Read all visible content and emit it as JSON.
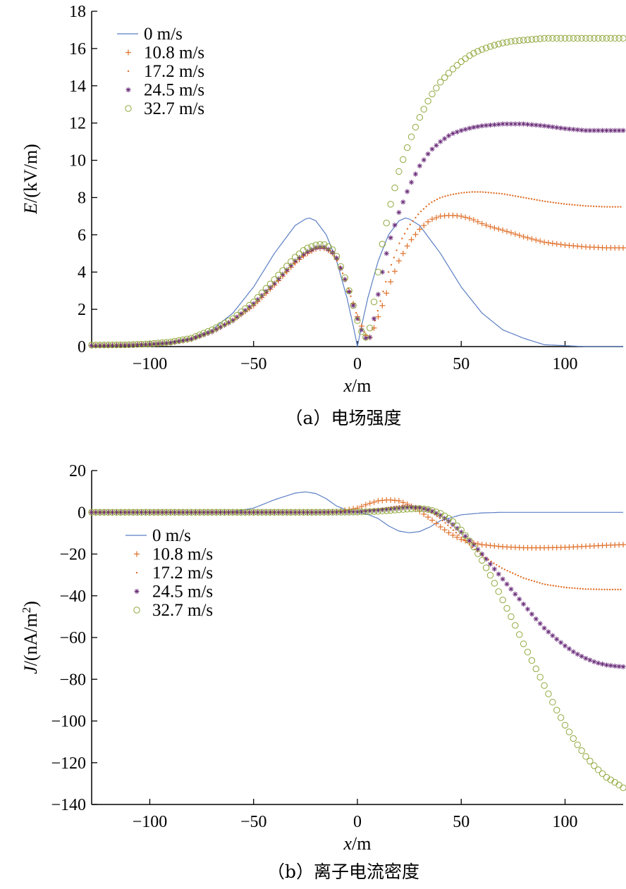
{
  "chart_data": [
    {
      "type": "scatter",
      "caption": "（a）电场强度",
      "ylabel_var": "E",
      "ylabel_unit": "/(kV/m)",
      "xlabel_var": "x",
      "xlabel_unit": "/m",
      "xlim": [
        -128,
        128
      ],
      "ylim": [
        0,
        18
      ],
      "xticks": [
        -100,
        -50,
        0,
        50,
        100
      ],
      "yticks": [
        0,
        2,
        4,
        6,
        8,
        10,
        12,
        14,
        16,
        18
      ],
      "xtick_labels": [
        "−100",
        "−50",
        "0",
        "50",
        "100"
      ],
      "ytick_labels": [
        "0",
        "2",
        "4",
        "6",
        "8",
        "10",
        "12",
        "14",
        "16",
        "18"
      ],
      "legend_position": "top-left",
      "series": [
        {
          "name": "0 m/s",
          "marker": "line",
          "color": "#5b7fc4",
          "x": [
            -128,
            -110,
            -100,
            -90,
            -80,
            -70,
            -60,
            -50,
            -40,
            -30,
            -25,
            -23,
            -20,
            -15,
            -10,
            -5,
            -2,
            0,
            2,
            5,
            10,
            15,
            20,
            23,
            25,
            30,
            40,
            50,
            60,
            70,
            80,
            90,
            100,
            110,
            128
          ],
          "y": [
            0.05,
            0.1,
            0.15,
            0.25,
            0.45,
            0.9,
            1.8,
            3.2,
            5.0,
            6.5,
            6.85,
            6.9,
            6.75,
            6.0,
            4.6,
            2.6,
            1.1,
            0.0,
            1.1,
            2.6,
            4.6,
            6.0,
            6.75,
            6.9,
            6.85,
            6.5,
            5.0,
            3.2,
            1.8,
            0.9,
            0.45,
            0.1,
            0.05,
            0.0,
            0.0
          ]
        },
        {
          "name": "10.8 m/s",
          "marker": "plus",
          "color": "#e0702a",
          "x": [
            -128,
            -110,
            -100,
            -90,
            -80,
            -70,
            -60,
            -50,
            -40,
            -30,
            -25,
            -20,
            -17,
            -15,
            -12,
            -10,
            -8,
            -5,
            -2,
            0,
            2,
            4,
            5,
            6,
            8,
            10,
            12,
            15,
            20,
            25,
            30,
            35,
            40,
            45,
            50,
            55,
            60,
            65,
            70,
            80,
            90,
            100,
            110,
            120,
            128
          ],
          "y": [
            0.05,
            0.08,
            0.12,
            0.2,
            0.4,
            0.8,
            1.4,
            2.2,
            3.3,
            4.5,
            4.95,
            5.25,
            5.3,
            5.25,
            5.0,
            4.7,
            4.2,
            3.3,
            2.3,
            1.6,
            1.1,
            0.6,
            0.4,
            0.5,
            1.0,
            1.6,
            2.2,
            3.2,
            4.6,
            5.6,
            6.3,
            6.8,
            7.0,
            7.05,
            7.0,
            6.85,
            6.6,
            6.4,
            6.25,
            5.9,
            5.6,
            5.45,
            5.35,
            5.3,
            5.3
          ]
        },
        {
          "name": "17.2 m/s",
          "marker": "dot",
          "color": "#e0702a",
          "x": [
            -128,
            -110,
            -100,
            -90,
            -80,
            -70,
            -60,
            -50,
            -40,
            -30,
            -25,
            -20,
            -17,
            -15,
            -12,
            -10,
            -8,
            -5,
            -2,
            0,
            2,
            4,
            5,
            6,
            8,
            10,
            12,
            15,
            20,
            25,
            30,
            35,
            40,
            45,
            50,
            55,
            60,
            65,
            70,
            80,
            90,
            100,
            110,
            120,
            128
          ],
          "y": [
            0.05,
            0.08,
            0.12,
            0.2,
            0.4,
            0.8,
            1.4,
            2.2,
            3.3,
            4.5,
            4.95,
            5.25,
            5.3,
            5.25,
            5.0,
            4.7,
            4.2,
            3.3,
            2.3,
            1.6,
            1.1,
            0.6,
            0.4,
            0.5,
            1.2,
            2.0,
            2.8,
            4.0,
            5.5,
            6.5,
            7.2,
            7.7,
            8.0,
            8.15,
            8.25,
            8.3,
            8.3,
            8.25,
            8.2,
            8.0,
            7.8,
            7.65,
            7.55,
            7.5,
            7.5
          ]
        },
        {
          "name": "24.5 m/s",
          "marker": "star",
          "color": "#6b2d7a",
          "x": [
            -128,
            -110,
            -100,
            -90,
            -80,
            -70,
            -60,
            -50,
            -40,
            -30,
            -25,
            -20,
            -17,
            -15,
            -12,
            -10,
            -8,
            -5,
            -2,
            0,
            2,
            4,
            5,
            6,
            8,
            10,
            12,
            15,
            20,
            25,
            30,
            35,
            40,
            45,
            50,
            55,
            60,
            65,
            70,
            75,
            80,
            90,
            100,
            110,
            120,
            128
          ],
          "y": [
            0.05,
            0.08,
            0.12,
            0.2,
            0.4,
            0.8,
            1.4,
            2.3,
            3.4,
            4.6,
            5.05,
            5.3,
            5.35,
            5.3,
            5.05,
            4.75,
            4.2,
            3.3,
            2.2,
            1.5,
            0.9,
            0.45,
            0.3,
            0.5,
            1.5,
            2.8,
            4.0,
            5.5,
            7.2,
            8.6,
            9.7,
            10.5,
            11.0,
            11.4,
            11.6,
            11.75,
            11.85,
            11.9,
            11.95,
            11.95,
            11.95,
            11.85,
            11.7,
            11.6,
            11.6,
            11.6
          ]
        },
        {
          "name": "32.7 m/s",
          "marker": "circle",
          "color": "#8fa83c",
          "x": [
            -128,
            -110,
            -100,
            -90,
            -80,
            -70,
            -60,
            -50,
            -40,
            -30,
            -25,
            -20,
            -17,
            -15,
            -12,
            -10,
            -8,
            -5,
            -2,
            0,
            2,
            4,
            5,
            6,
            8,
            10,
            12,
            15,
            20,
            25,
            30,
            35,
            40,
            45,
            50,
            55,
            60,
            65,
            70,
            75,
            80,
            90,
            100,
            110,
            120,
            128
          ],
          "y": [
            0.08,
            0.1,
            0.15,
            0.25,
            0.45,
            0.9,
            1.5,
            2.4,
            3.6,
            4.8,
            5.25,
            5.45,
            5.5,
            5.45,
            5.2,
            4.85,
            4.3,
            3.4,
            2.2,
            1.4,
            0.8,
            0.5,
            0.6,
            1.0,
            2.4,
            4.0,
            5.5,
            7.2,
            9.4,
            11.0,
            12.3,
            13.4,
            14.2,
            14.8,
            15.3,
            15.7,
            15.95,
            16.15,
            16.3,
            16.4,
            16.45,
            16.55,
            16.55,
            16.55,
            16.55,
            16.55
          ]
        }
      ]
    },
    {
      "type": "scatter",
      "caption": "（b）离子电流密度",
      "ylabel_var": "J",
      "ylabel_unit": "/(nA/m",
      "ylabel_sup": "2",
      "ylabel_close": ")",
      "xlabel_var": "x",
      "xlabel_unit": "/m",
      "xlim": [
        -128,
        128
      ],
      "ylim": [
        -140,
        20
      ],
      "xticks": [
        -100,
        -50,
        0,
        50,
        100
      ],
      "yticks": [
        -140,
        -120,
        -100,
        -80,
        -60,
        -40,
        -20,
        0,
        20
      ],
      "xtick_labels": [
        "−100",
        "−50",
        "0",
        "50",
        "100"
      ],
      "ytick_labels": [
        "−140",
        "−120",
        "−100",
        "−80",
        "−60",
        "−40",
        "−20",
        "0",
        "20"
      ],
      "legend_position": "center-left",
      "series": [
        {
          "name": "0 m/s",
          "marker": "line",
          "color": "#5b7fc4",
          "x": [
            -128,
            -80,
            -60,
            -50,
            -40,
            -30,
            -25,
            -20,
            -15,
            -10,
            -5,
            0,
            5,
            10,
            15,
            20,
            25,
            30,
            35,
            40,
            50,
            60,
            70,
            80,
            100,
            128
          ],
          "y": [
            0,
            0,
            0.3,
            2,
            6,
            9.2,
            9.8,
            9,
            6.5,
            3,
            1,
            0,
            -1,
            -3,
            -6.5,
            -9,
            -9.8,
            -9.2,
            -7,
            -4,
            -1.2,
            -0.3,
            0,
            0,
            0,
            0
          ]
        },
        {
          "name": "10.8 m/s",
          "marker": "plus",
          "color": "#e0702a",
          "x": [
            -128,
            -80,
            -40,
            -30,
            -20,
            -10,
            0,
            5,
            10,
            15,
            20,
            25,
            30,
            35,
            40,
            45,
            50,
            55,
            60,
            70,
            80,
            90,
            100,
            110,
            120,
            128
          ],
          "y": [
            0,
            0,
            0,
            0,
            0,
            0.3,
            2,
            4,
            5.5,
            6,
            5.5,
            3.5,
            0.5,
            -3,
            -7,
            -10.5,
            -13,
            -14.5,
            -15.5,
            -16.5,
            -17,
            -17,
            -16.8,
            -16.3,
            -15.8,
            -15.5
          ]
        },
        {
          "name": "17.2 m/s",
          "marker": "dot",
          "color": "#e0702a",
          "x": [
            -128,
            -80,
            -40,
            -20,
            0,
            10,
            20,
            25,
            30,
            35,
            40,
            45,
            50,
            55,
            60,
            65,
            70,
            80,
            90,
            100,
            110,
            120,
            128
          ],
          "y": [
            0,
            0,
            0,
            0,
            0.3,
            1.5,
            3,
            3.2,
            2.5,
            0.5,
            -3,
            -7.5,
            -12,
            -16.5,
            -20.5,
            -24,
            -27,
            -31.5,
            -34.5,
            -36,
            -36.8,
            -37,
            -37
          ]
        },
        {
          "name": "24.5 m/s",
          "marker": "star",
          "color": "#6b2d7a",
          "x": [
            -128,
            -80,
            -40,
            -20,
            0,
            10,
            20,
            25,
            30,
            35,
            40,
            45,
            50,
            55,
            60,
            65,
            70,
            75,
            80,
            85,
            90,
            95,
            100,
            105,
            110,
            115,
            120,
            125,
            128
          ],
          "y": [
            0,
            0,
            0,
            0,
            0.2,
            1,
            2,
            2.5,
            2.2,
            1,
            -1.5,
            -5,
            -9.5,
            -14.5,
            -20,
            -26,
            -32,
            -38,
            -44,
            -50,
            -55.5,
            -60,
            -64,
            -67.5,
            -70,
            -72,
            -73.2,
            -73.8,
            -74
          ]
        },
        {
          "name": "32.7 m/s",
          "marker": "circle",
          "color": "#8fa83c",
          "x": [
            -128,
            -80,
            -40,
            -20,
            0,
            10,
            20,
            25,
            30,
            35,
            40,
            45,
            50,
            55,
            60,
            65,
            70,
            75,
            80,
            85,
            90,
            95,
            100,
            105,
            110,
            115,
            120,
            125,
            128
          ],
          "y": [
            0,
            0,
            0,
            0,
            0.1,
            0.5,
            1.2,
            1.6,
            1.8,
            1.2,
            -0.5,
            -3.5,
            -8.5,
            -15,
            -23,
            -32,
            -42,
            -52,
            -63,
            -73,
            -83,
            -93,
            -102,
            -110,
            -117,
            -122.5,
            -127,
            -130,
            -132
          ]
        }
      ]
    }
  ]
}
